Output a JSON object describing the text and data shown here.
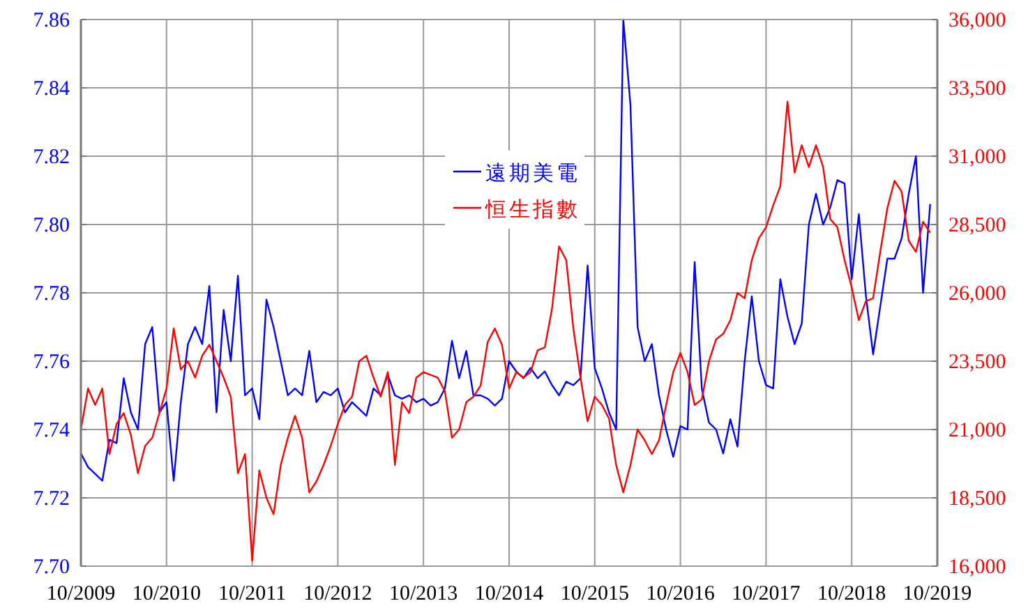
{
  "chart_data": {
    "type": "line",
    "grid": true,
    "legend": "top",
    "line_style": "solid",
    "xlim": [
      "2009-10",
      "2019-10"
    ],
    "xticks": [
      {
        "value": "2009-10",
        "label": "10/2009"
      },
      {
        "value": "2010-10",
        "label": "10/2010"
      },
      {
        "value": "2011-10",
        "label": "10/2011"
      },
      {
        "value": "2012-10",
        "label": "10/2012"
      },
      {
        "value": "2013-10",
        "label": "10/2013"
      },
      {
        "value": "2014-10",
        "label": "10/2014"
      },
      {
        "value": "2015-10",
        "label": "10/2015"
      },
      {
        "value": "2016-10",
        "label": "10/2016"
      },
      {
        "value": "2017-10",
        "label": "10/2017"
      },
      {
        "value": "2018-10",
        "label": "10/2018"
      },
      {
        "value": "2019-10",
        "label": "10/2019"
      }
    ],
    "ylim": [
      7.7,
      7.86
    ],
    "yticks": [
      {
        "value": 7.7,
        "label": "7.70"
      },
      {
        "value": 7.72,
        "label": "7.72"
      },
      {
        "value": 7.74,
        "label": "7.74"
      },
      {
        "value": 7.76,
        "label": "7.76"
      },
      {
        "value": 7.78,
        "label": "7.78"
      },
      {
        "value": 7.8,
        "label": "7.80"
      },
      {
        "value": 7.82,
        "label": "7.82"
      },
      {
        "value": 7.84,
        "label": "7.84"
      },
      {
        "value": 7.86,
        "label": "7.86"
      }
    ],
    "y2lim": [
      16000,
      36000
    ],
    "y2ticks": [
      {
        "value": 16000,
        "label": "16,000"
      },
      {
        "value": 18500,
        "label": "18,500"
      },
      {
        "value": 21000,
        "label": "21,000"
      },
      {
        "value": 23500,
        "label": "23,500"
      },
      {
        "value": 26000,
        "label": "26,000"
      },
      {
        "value": 28500,
        "label": "28,500"
      },
      {
        "value": 31000,
        "label": "31,000"
      },
      {
        "value": 33500,
        "label": "33,500"
      },
      {
        "value": 36000,
        "label": "36,000"
      }
    ],
    "series": [
      {
        "name": "遠期美電",
        "color": "#0000ff",
        "axis": "y",
        "x": [
          "2009-10",
          "2009-11",
          "2009-12",
          "2010-01",
          "2010-02",
          "2010-03",
          "2010-04",
          "2010-05",
          "2010-06",
          "2010-07",
          "2010-08",
          "2010-09",
          "2010-10",
          "2010-11",
          "2010-12",
          "2011-01",
          "2011-02",
          "2011-03",
          "2011-04",
          "2011-05",
          "2011-06",
          "2011-07",
          "2011-08",
          "2011-09",
          "2011-10",
          "2011-11",
          "2011-12",
          "2012-01",
          "2012-02",
          "2012-03",
          "2012-04",
          "2012-05",
          "2012-06",
          "2012-07",
          "2012-08",
          "2012-09",
          "2012-10",
          "2012-11",
          "2012-12",
          "2013-01",
          "2013-02",
          "2013-03",
          "2013-04",
          "2013-05",
          "2013-06",
          "2013-07",
          "2013-08",
          "2013-09",
          "2013-10",
          "2013-11",
          "2013-12",
          "2014-01",
          "2014-02",
          "2014-03",
          "2014-04",
          "2014-05",
          "2014-06",
          "2014-07",
          "2014-08",
          "2014-09",
          "2014-10",
          "2014-11",
          "2014-12",
          "2015-01",
          "2015-02",
          "2015-03",
          "2015-04",
          "2015-05",
          "2015-06",
          "2015-07",
          "2015-08",
          "2015-09",
          "2015-10",
          "2015-11",
          "2015-12",
          "2016-01",
          "2016-02",
          "2016-03",
          "2016-04",
          "2016-05",
          "2016-06",
          "2016-07",
          "2016-08",
          "2016-09",
          "2016-10",
          "2016-11",
          "2016-12",
          "2017-01",
          "2017-02",
          "2017-03",
          "2017-04",
          "2017-05",
          "2017-06",
          "2017-07",
          "2017-08",
          "2017-09",
          "2017-10",
          "2017-11",
          "2017-12",
          "2018-01",
          "2018-02",
          "2018-03",
          "2018-04",
          "2018-05",
          "2018-06",
          "2018-07",
          "2018-08",
          "2018-09",
          "2018-10",
          "2018-11",
          "2018-12",
          "2019-01",
          "2019-02",
          "2019-03",
          "2019-04",
          "2019-05",
          "2019-06",
          "2019-07",
          "2019-08",
          "2019-09"
        ],
        "values": [
          7.733,
          7.729,
          7.727,
          7.725,
          7.737,
          7.736,
          7.755,
          7.745,
          7.74,
          7.765,
          7.77,
          7.745,
          7.748,
          7.725,
          7.748,
          7.765,
          7.77,
          7.765,
          7.782,
          7.745,
          7.775,
          7.76,
          7.785,
          7.75,
          7.752,
          7.743,
          7.778,
          7.77,
          7.76,
          7.75,
          7.752,
          7.75,
          7.763,
          7.748,
          7.751,
          7.75,
          7.752,
          7.745,
          7.748,
          7.746,
          7.744,
          7.752,
          7.75,
          7.756,
          7.75,
          7.749,
          7.75,
          7.748,
          7.749,
          7.747,
          7.748,
          7.752,
          7.766,
          7.755,
          7.763,
          7.75,
          7.75,
          7.749,
          7.747,
          7.749,
          7.76,
          7.757,
          7.755,
          7.758,
          7.755,
          7.757,
          7.753,
          7.75,
          7.754,
          7.753,
          7.755,
          7.788,
          7.758,
          7.752,
          7.745,
          7.74,
          7.86,
          7.835,
          7.77,
          7.76,
          7.765,
          7.75,
          7.74,
          7.732,
          7.741,
          7.74,
          7.789,
          7.752,
          7.742,
          7.74,
          7.733,
          7.743,
          7.735,
          7.76,
          7.779,
          7.76,
          7.753,
          7.752,
          7.784,
          7.773,
          7.765,
          7.771,
          7.8,
          7.809,
          7.8,
          7.805,
          7.813,
          7.812,
          7.784,
          7.803,
          7.779,
          7.762,
          7.776,
          7.79,
          7.79,
          7.796,
          7.809,
          7.82,
          7.78,
          7.806
        ]
      },
      {
        "name": "恒生指數",
        "color": "#ff0000",
        "axis": "y2",
        "x": [
          "2009-10",
          "2009-11",
          "2009-12",
          "2010-01",
          "2010-02",
          "2010-03",
          "2010-04",
          "2010-05",
          "2010-06",
          "2010-07",
          "2010-08",
          "2010-09",
          "2010-10",
          "2010-11",
          "2010-12",
          "2011-01",
          "2011-02",
          "2011-03",
          "2011-04",
          "2011-05",
          "2011-06",
          "2011-07",
          "2011-08",
          "2011-09",
          "2011-10",
          "2011-11",
          "2011-12",
          "2012-01",
          "2012-02",
          "2012-03",
          "2012-04",
          "2012-05",
          "2012-06",
          "2012-07",
          "2012-08",
          "2012-09",
          "2012-10",
          "2012-11",
          "2012-12",
          "2013-01",
          "2013-02",
          "2013-03",
          "2013-04",
          "2013-05",
          "2013-06",
          "2013-07",
          "2013-08",
          "2013-09",
          "2013-10",
          "2013-11",
          "2013-12",
          "2014-01",
          "2014-02",
          "2014-03",
          "2014-04",
          "2014-05",
          "2014-06",
          "2014-07",
          "2014-08",
          "2014-09",
          "2014-10",
          "2014-11",
          "2014-12",
          "2015-01",
          "2015-02",
          "2015-03",
          "2015-04",
          "2015-05",
          "2015-06",
          "2015-07",
          "2015-08",
          "2015-09",
          "2015-10",
          "2015-11",
          "2015-12",
          "2016-01",
          "2016-02",
          "2016-03",
          "2016-04",
          "2016-05",
          "2016-06",
          "2016-07",
          "2016-08",
          "2016-09",
          "2016-10",
          "2016-11",
          "2016-12",
          "2017-01",
          "2017-02",
          "2017-03",
          "2017-04",
          "2017-05",
          "2017-06",
          "2017-07",
          "2017-08",
          "2017-09",
          "2017-10",
          "2017-11",
          "2017-12",
          "2018-01",
          "2018-02",
          "2018-03",
          "2018-04",
          "2018-05",
          "2018-06",
          "2018-07",
          "2018-08",
          "2018-09",
          "2018-10",
          "2018-11",
          "2018-12",
          "2019-01",
          "2019-02",
          "2019-03",
          "2019-04",
          "2019-05",
          "2019-06",
          "2019-07",
          "2019-08",
          "2019-09"
        ],
        "values": [
          21000,
          22500,
          21900,
          22500,
          20100,
          21200,
          21600,
          20800,
          19400,
          20400,
          20700,
          21600,
          22500,
          24700,
          23200,
          23500,
          22900,
          23700,
          24100,
          23500,
          22900,
          22200,
          19400,
          20100,
          16200,
          19500,
          18500,
          17900,
          19700,
          20700,
          21500,
          20700,
          18700,
          19100,
          19700,
          20400,
          21200,
          21900,
          22200,
          23500,
          23700,
          22900,
          22200,
          23100,
          19700,
          22000,
          21600,
          22900,
          23100,
          23000,
          22900,
          22400,
          20700,
          21000,
          22000,
          22200,
          22600,
          24200,
          24700,
          24100,
          22500,
          23100,
          22900,
          23100,
          23900,
          24000,
          25400,
          27700,
          27200,
          24700,
          22900,
          21300,
          22200,
          21900,
          21400,
          19700,
          18700,
          19700,
          21000,
          20600,
          20100,
          20600,
          21900,
          23100,
          23800,
          23100,
          21900,
          22100,
          23500,
          24300,
          24500,
          25000,
          26000,
          25800,
          27200,
          28000,
          28400,
          29200,
          29900,
          33000,
          30400,
          31400,
          30600,
          31400,
          30600,
          28700,
          28400,
          27200,
          26200,
          25000,
          25700,
          25800,
          27500,
          29100,
          30100,
          29700,
          27900,
          27500,
          28600,
          28200
        ]
      }
    ]
  }
}
